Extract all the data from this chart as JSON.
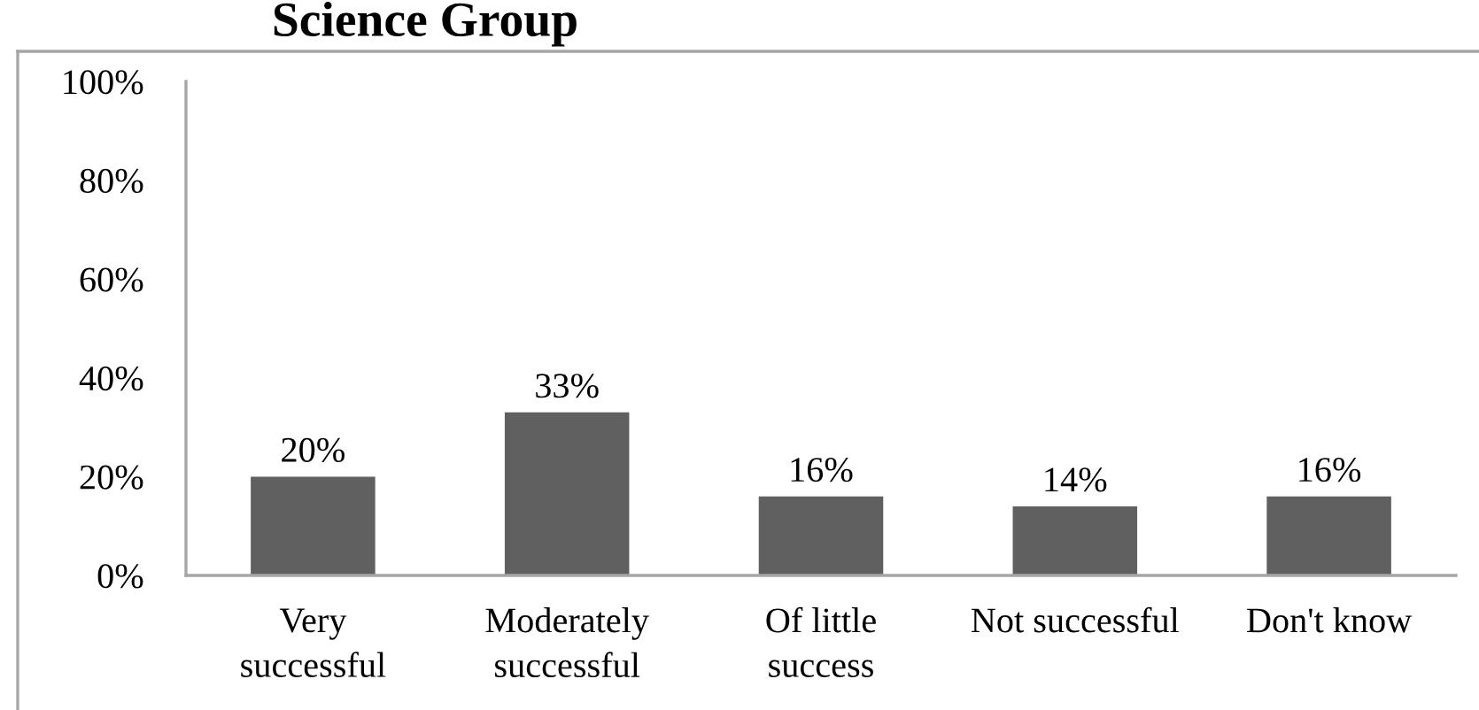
{
  "chart_data": {
    "type": "bar",
    "title": "Science Group",
    "categories": [
      "Very\nsuccessful",
      "Moderately\nsuccessful",
      "Of little\nsuccess",
      "Not successful",
      "Don't know"
    ],
    "values": [
      20,
      33,
      16,
      14,
      16
    ],
    "color": "#606060",
    "value_labels": [
      "20%",
      "33%",
      "16%",
      "14%",
      "16%"
    ],
    "ylim": [
      0,
      100
    ],
    "yticks": [
      {
        "value": 0,
        "label": "0%"
      },
      {
        "value": 20,
        "label": "20%"
      },
      {
        "value": 40,
        "label": "40%"
      },
      {
        "value": 60,
        "label": "60%"
      },
      {
        "value": 80,
        "label": "80%"
      },
      {
        "value": 100,
        "label": "100%"
      }
    ],
    "grid": false,
    "legend": false
  }
}
